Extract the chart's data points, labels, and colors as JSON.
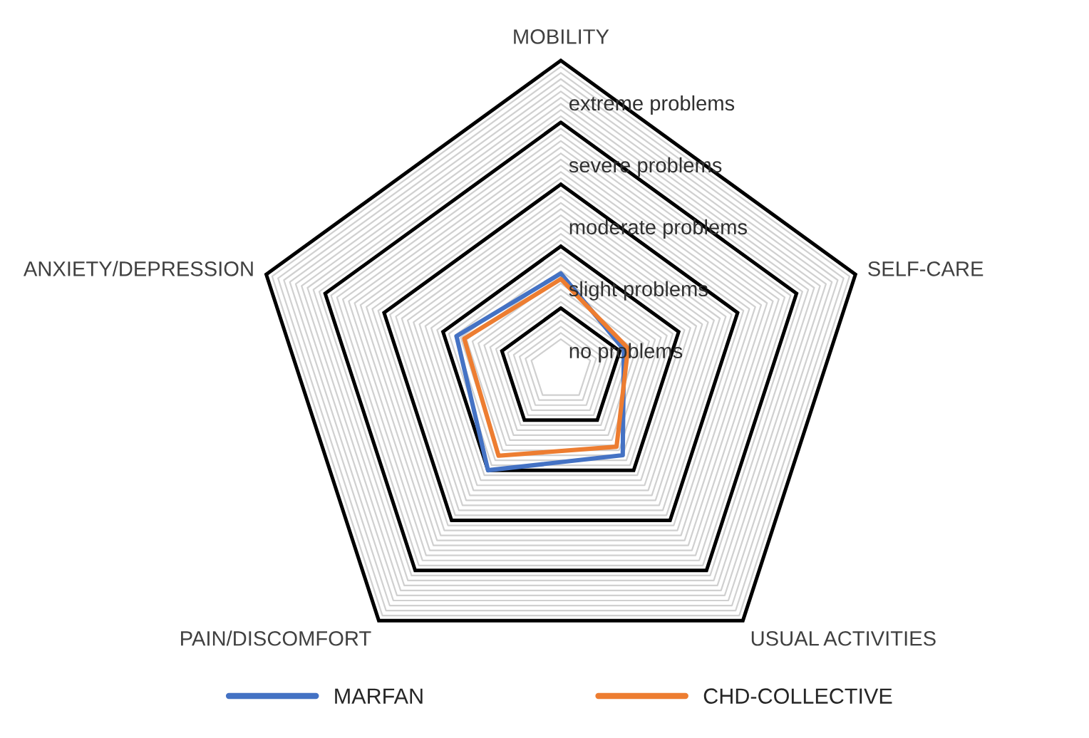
{
  "chart_data": {
    "type": "radar",
    "categories": [
      "MOBILITY",
      "SELF-CARE",
      "USUAL ACTIVITIES",
      "PAIN/DISCOMFORT",
      "ANXIETY/DEPRESSION"
    ],
    "series": [
      {
        "name": "MARFAN",
        "color": "#4472c4",
        "values": [
          1.56,
          1.07,
          1.7,
          2.0,
          1.77
        ]
      },
      {
        "name": "CHD-COLLECTIVE",
        "color": "#ed7d31",
        "values": [
          1.47,
          1.14,
          1.53,
          1.71,
          1.64
        ]
      }
    ],
    "ylim": [
      0,
      5
    ],
    "yticks": [
      {
        "value": 1,
        "label": "no problems"
      },
      {
        "value": 2,
        "label": "slight problems"
      },
      {
        "value": 3,
        "label": "moderate problems"
      },
      {
        "value": 4,
        "label": "severe problems"
      },
      {
        "value": 5,
        "label": "extreme problems"
      }
    ],
    "grid": true,
    "legend": "bottom",
    "marker": "none",
    "line_style": "solid"
  }
}
